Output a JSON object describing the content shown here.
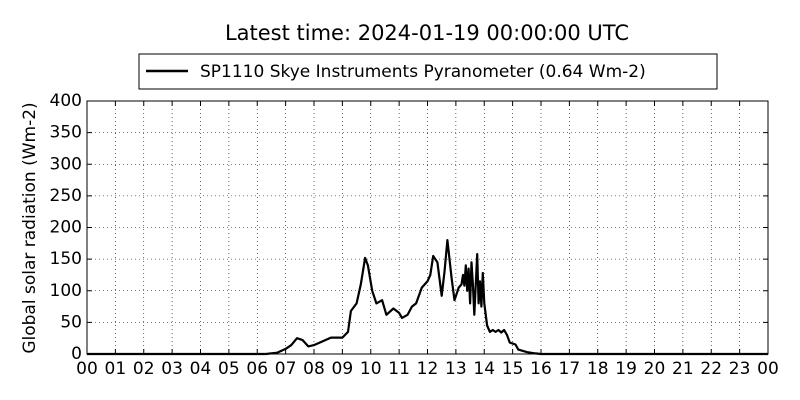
{
  "chart_data": {
    "type": "line",
    "title": "Latest time: 2024-01-19 00:00:00 UTC",
    "y_label": "Global solar radiation (Wm-2)",
    "legend": "upper center",
    "grid": true,
    "xlim": [
      0,
      24
    ],
    "ylim": [
      0,
      400
    ],
    "xticks": [
      {
        "value": 0,
        "label": "00"
      },
      {
        "value": 1,
        "label": "01"
      },
      {
        "value": 2,
        "label": "02"
      },
      {
        "value": 3,
        "label": "03"
      },
      {
        "value": 4,
        "label": "04"
      },
      {
        "value": 5,
        "label": "05"
      },
      {
        "value": 6,
        "label": "06"
      },
      {
        "value": 7,
        "label": "07"
      },
      {
        "value": 8,
        "label": "08"
      },
      {
        "value": 9,
        "label": "09"
      },
      {
        "value": 10,
        "label": "10"
      },
      {
        "value": 11,
        "label": "11"
      },
      {
        "value": 12,
        "label": "12"
      },
      {
        "value": 13,
        "label": "13"
      },
      {
        "value": 14,
        "label": "14"
      },
      {
        "value": 15,
        "label": "15"
      },
      {
        "value": 16,
        "label": "16"
      },
      {
        "value": 17,
        "label": "17"
      },
      {
        "value": 18,
        "label": "18"
      },
      {
        "value": 19,
        "label": "19"
      },
      {
        "value": 20,
        "label": "20"
      },
      {
        "value": 21,
        "label": "21"
      },
      {
        "value": 22,
        "label": "22"
      },
      {
        "value": 23,
        "label": "23"
      },
      {
        "value": 24,
        "label": "00"
      }
    ],
    "yticks": [
      0,
      50,
      100,
      150,
      200,
      250,
      300,
      350,
      400
    ],
    "x": [
      0,
      6.3,
      6.7,
      7.0,
      7.2,
      7.4,
      7.6,
      7.8,
      8.0,
      8.3,
      8.6,
      9.0,
      9.2,
      9.3,
      9.5,
      9.65,
      9.8,
      9.9,
      10.05,
      10.2,
      10.4,
      10.55,
      10.8,
      11.0,
      11.1,
      11.3,
      11.45,
      11.6,
      11.8,
      12.0,
      12.1,
      12.2,
      12.35,
      12.5,
      12.6,
      12.7,
      12.85,
      12.95,
      13.1,
      13.2,
      13.25,
      13.3,
      13.35,
      13.4,
      13.45,
      13.5,
      13.55,
      13.6,
      13.65,
      13.75,
      13.8,
      13.85,
      13.9,
      13.95,
      14.0,
      14.1,
      14.2,
      14.3,
      14.4,
      14.5,
      14.6,
      14.7,
      14.8,
      14.9,
      15.1,
      15.2,
      15.5,
      15.8,
      16.0,
      24
    ],
    "series": [
      {
        "name": "SP1110 Skye Instruments Pyranometer (0.64 Wm-2)",
        "color": "#000000",
        "values": [
          0,
          0,
          2,
          8,
          14,
          25,
          22,
          12,
          14,
          20,
          26,
          26,
          35,
          68,
          80,
          110,
          152,
          140,
          100,
          80,
          85,
          62,
          72,
          65,
          57,
          62,
          75,
          80,
          105,
          115,
          125,
          155,
          145,
          92,
          130,
          180,
          120,
          85,
          105,
          110,
          125,
          108,
          140,
          100,
          135,
          80,
          145,
          110,
          62,
          158,
          80,
          115,
          75,
          128,
          80,
          45,
          35,
          38,
          35,
          38,
          34,
          38,
          30,
          18,
          15,
          7,
          3,
          1,
          0,
          0
        ]
      }
    ]
  }
}
